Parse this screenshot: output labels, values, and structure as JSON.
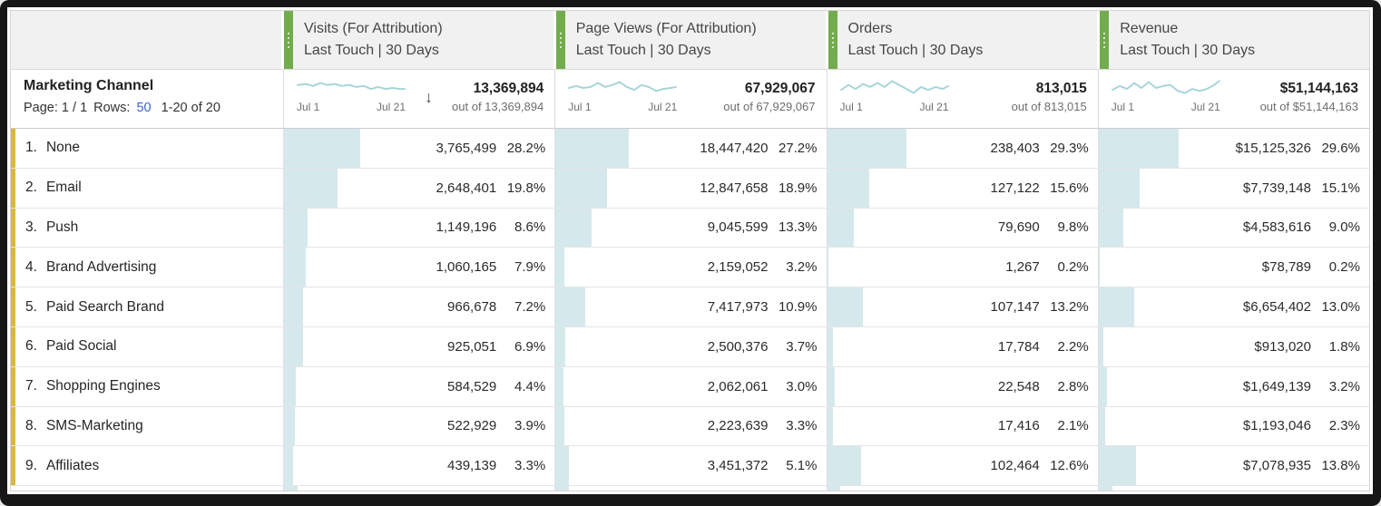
{
  "colors": {
    "column_accent_green": "#72ac4c",
    "row_accent_gold": "#d8b64b",
    "bar_fill_blue": "#d5e9ed",
    "sparkline_teal": "#a5d5d9",
    "link_blue": "#3b63c8",
    "frame_black": "#161616"
  },
  "table": {
    "row_header": {
      "title": "Marketing Channel",
      "page_label": "Page: 1 / 1",
      "rows_label": "Rows:",
      "rows_value": "50",
      "range": "1-20 of 20"
    },
    "spark_start": "Jul 1",
    "spark_end": "Jul 21",
    "sort_icon": "↓",
    "columns": [
      {
        "title": "Visits (For Attribution)",
        "subtitle": "Last Touch | 30 Days",
        "total": "13,369,894",
        "out_of": "out of 13,369,894",
        "sorted": true,
        "sparkline": "1,8 10,7 18,9 26,6 34,8 42,7 50,9 58,8 66,10 74,9 82,12 90,10 98,12 106,11 114,12 119,12"
      },
      {
        "title": "Page Views (For Attribution)",
        "subtitle": "Last Touch | 30 Days",
        "total": "67,929,067",
        "out_of": "out of 67,929,067",
        "sorted": false,
        "sparkline": "1,11 9,9 17,11 25,10 33,6 41,10 49,8 57,5 65,10 73,13 81,8 89,10 97,14 105,12 113,11 119,10"
      },
      {
        "title": "Orders",
        "subtitle": "Last Touch | 30 Days",
        "total": "813,015",
        "out_of": "out of 813,015",
        "sorted": false,
        "sparkline": "1,13 9,8 17,12 25,7 33,10 41,6 49,10 57,4 65,8 73,12 81,16 89,10 97,13 105,10 113,12 119,9"
      },
      {
        "title": "Revenue",
        "subtitle": "Last Touch | 30 Days",
        "total": "$51,144,163",
        "out_of": "out of $51,144,163",
        "sorted": false,
        "sparkline": "1,13 9,9 17,12 25,6 33,11 41,5 49,11 57,9 65,8 73,14 81,16 89,12 97,14 105,12 113,8 119,4"
      }
    ],
    "rows": [
      {
        "rank": "1.",
        "name": "None",
        "cells": [
          {
            "value": "3,765,499",
            "pct": "28.2%"
          },
          {
            "value": "18,447,420",
            "pct": "27.2%"
          },
          {
            "value": "238,403",
            "pct": "29.3%"
          },
          {
            "value": "$15,125,326",
            "pct": "29.6%"
          }
        ]
      },
      {
        "rank": "2.",
        "name": "Email",
        "cells": [
          {
            "value": "2,648,401",
            "pct": "19.8%"
          },
          {
            "value": "12,847,658",
            "pct": "18.9%"
          },
          {
            "value": "127,122",
            "pct": "15.6%"
          },
          {
            "value": "$7,739,148",
            "pct": "15.1%"
          }
        ]
      },
      {
        "rank": "3.",
        "name": "Push",
        "cells": [
          {
            "value": "1,149,196",
            "pct": "8.6%"
          },
          {
            "value": "9,045,599",
            "pct": "13.3%"
          },
          {
            "value": "79,690",
            "pct": "9.8%"
          },
          {
            "value": "$4,583,616",
            "pct": "9.0%"
          }
        ]
      },
      {
        "rank": "4.",
        "name": "Brand Advertising",
        "cells": [
          {
            "value": "1,060,165",
            "pct": "7.9%"
          },
          {
            "value": "2,159,052",
            "pct": "3.2%"
          },
          {
            "value": "1,267",
            "pct": "0.2%"
          },
          {
            "value": "$78,789",
            "pct": "0.2%"
          }
        ]
      },
      {
        "rank": "5.",
        "name": "Paid Search Brand",
        "cells": [
          {
            "value": "966,678",
            "pct": "7.2%"
          },
          {
            "value": "7,417,973",
            "pct": "10.9%"
          },
          {
            "value": "107,147",
            "pct": "13.2%"
          },
          {
            "value": "$6,654,402",
            "pct": "13.0%"
          }
        ]
      },
      {
        "rank": "6.",
        "name": "Paid Social",
        "cells": [
          {
            "value": "925,051",
            "pct": "6.9%"
          },
          {
            "value": "2,500,376",
            "pct": "3.7%"
          },
          {
            "value": "17,784",
            "pct": "2.2%"
          },
          {
            "value": "$913,020",
            "pct": "1.8%"
          }
        ]
      },
      {
        "rank": "7.",
        "name": "Shopping Engines",
        "cells": [
          {
            "value": "584,529",
            "pct": "4.4%"
          },
          {
            "value": "2,062,061",
            "pct": "3.0%"
          },
          {
            "value": "22,548",
            "pct": "2.8%"
          },
          {
            "value": "$1,649,139",
            "pct": "3.2%"
          }
        ]
      },
      {
        "rank": "8.",
        "name": "SMS-Marketing",
        "cells": [
          {
            "value": "522,929",
            "pct": "3.9%"
          },
          {
            "value": "2,223,639",
            "pct": "3.3%"
          },
          {
            "value": "17,416",
            "pct": "2.1%"
          },
          {
            "value": "$1,193,046",
            "pct": "2.3%"
          }
        ]
      },
      {
        "rank": "9.",
        "name": "Affiliates",
        "cells": [
          {
            "value": "439,139",
            "pct": "3.3%"
          },
          {
            "value": "3,451,372",
            "pct": "5.1%"
          },
          {
            "value": "102,464",
            "pct": "12.6%"
          },
          {
            "value": "$7,078,935",
            "pct": "13.8%"
          }
        ]
      }
    ]
  }
}
